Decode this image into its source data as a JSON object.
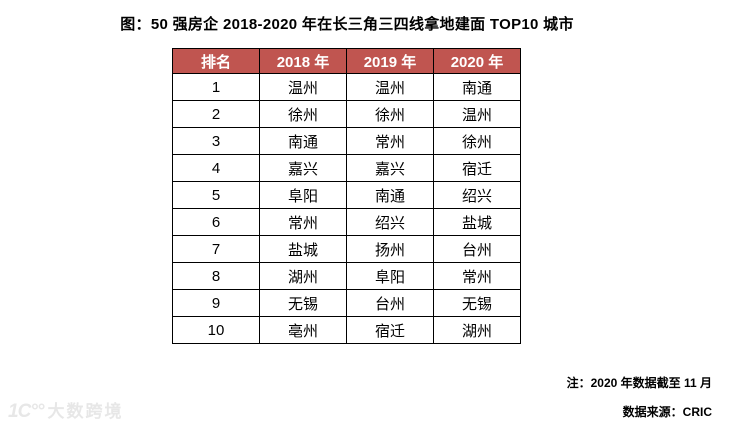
{
  "page": {
    "title": "图：50 强房企 2018-2020 年在长三角三四线拿地建面 TOP10 城市",
    "notes": {
      "cutoff": "注：2020 年数据截至 11 月",
      "source": "数据来源：CRIC"
    },
    "watermark": {
      "logo": "1C°°",
      "text": "大数跨境"
    }
  },
  "colors": {
    "header_bg": "#C05550",
    "header_text": "#FFFFFF",
    "border": "#000000",
    "watermark": "#E7E7E7"
  },
  "chart_data": {
    "type": "table",
    "title": "图：50 强房企 2018-2020 年在长三角三四线拿地建面 TOP10 城市",
    "columns": [
      "排名",
      "2018 年",
      "2019 年",
      "2020 年"
    ],
    "rows": [
      [
        "1",
        "温州",
        "温州",
        "南通"
      ],
      [
        "2",
        "徐州",
        "徐州",
        "温州"
      ],
      [
        "3",
        "南通",
        "常州",
        "徐州"
      ],
      [
        "4",
        "嘉兴",
        "嘉兴",
        "宿迁"
      ],
      [
        "5",
        "阜阳",
        "南通",
        "绍兴"
      ],
      [
        "6",
        "常州",
        "绍兴",
        "盐城"
      ],
      [
        "7",
        "盐城",
        "扬州",
        "台州"
      ],
      [
        "8",
        "湖州",
        "阜阳",
        "常州"
      ],
      [
        "9",
        "无锡",
        "台州",
        "无锡"
      ],
      [
        "10",
        "亳州",
        "宿迁",
        "湖州"
      ]
    ],
    "notes": [
      "注：2020 年数据截至 11 月",
      "数据来源：CRIC"
    ],
    "source": "CRIC",
    "legend_position": "none",
    "grid": "table-borders"
  }
}
